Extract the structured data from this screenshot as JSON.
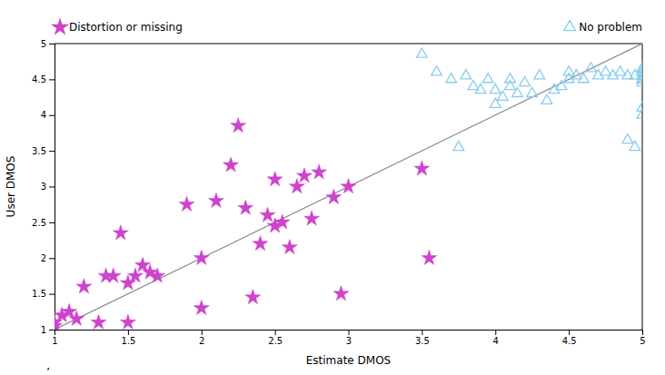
{
  "chart_data": {
    "type": "scatter",
    "xlabel": "Estimate DMOS",
    "ylabel": "User DMOS",
    "annotation": ",",
    "xlim": [
      1,
      5
    ],
    "ylim": [
      1,
      5
    ],
    "xticks": [
      1,
      1.5,
      2,
      2.5,
      3,
      3.5,
      4,
      4.5,
      5
    ],
    "yticks": [
      1,
      1.5,
      2,
      2.5,
      3,
      3.5,
      4,
      4.5,
      5
    ],
    "grid": false,
    "legend": "top",
    "series": [
      {
        "type": "line",
        "color": "#888888",
        "line_style": "solid",
        "x": [
          1,
          5
        ],
        "values": [
          1,
          5
        ]
      },
      {
        "name": "Distortion or missing",
        "type": "scatter",
        "marker": "star",
        "color": "#cc44cc",
        "x": [
          1.0,
          1.0,
          1.05,
          1.1,
          1.15,
          1.2,
          1.3,
          1.35,
          1.4,
          1.45,
          1.5,
          1.5,
          1.55,
          1.6,
          1.65,
          1.7,
          1.9,
          2.0,
          2.0,
          2.1,
          2.2,
          2.25,
          2.3,
          2.35,
          2.4,
          2.45,
          2.5,
          2.5,
          2.55,
          2.6,
          2.65,
          2.7,
          2.75,
          2.8,
          2.9,
          2.95,
          3.0,
          3.5,
          3.55
        ],
        "values": [
          1.05,
          1.1,
          1.2,
          1.25,
          1.15,
          1.6,
          1.1,
          1.75,
          1.75,
          2.35,
          1.1,
          1.65,
          1.75,
          1.9,
          1.8,
          1.75,
          2.75,
          1.3,
          2.0,
          2.8,
          3.3,
          3.85,
          2.7,
          1.45,
          2.2,
          2.6,
          2.45,
          3.1,
          2.5,
          2.15,
          3.0,
          3.15,
          2.55,
          3.2,
          2.85,
          1.5,
          3.0,
          3.25,
          2.0
        ]
      },
      {
        "name": "No problem",
        "type": "scatter",
        "marker": "triangle-open",
        "color": "#88ccee",
        "x": [
          3.5,
          3.6,
          3.7,
          3.75,
          3.8,
          3.85,
          3.9,
          3.95,
          4.0,
          4.0,
          4.05,
          4.1,
          4.1,
          4.15,
          4.2,
          4.25,
          4.3,
          4.35,
          4.4,
          4.45,
          4.5,
          4.5,
          4.55,
          4.6,
          4.65,
          4.7,
          4.75,
          4.8,
          4.85,
          4.9,
          4.95,
          5.0,
          5.0,
          5.0,
          5.0,
          5.0,
          5.0,
          5.0,
          5.0,
          5.0,
          5.0,
          5.0,
          4.95,
          4.9,
          5.0
        ],
        "values": [
          4.85,
          4.6,
          4.5,
          3.55,
          4.55,
          4.4,
          4.35,
          4.5,
          4.15,
          4.35,
          4.25,
          4.4,
          4.5,
          4.3,
          4.45,
          4.3,
          4.55,
          4.2,
          4.35,
          4.4,
          4.5,
          4.6,
          4.55,
          4.5,
          4.65,
          4.55,
          4.6,
          4.55,
          4.6,
          4.55,
          4.55,
          4.6,
          4.65,
          4.55,
          4.5,
          4.45,
          4.5,
          4.6,
          4.65,
          4.55,
          4.0,
          4.5,
          3.55,
          3.65,
          4.1
        ]
      }
    ]
  }
}
